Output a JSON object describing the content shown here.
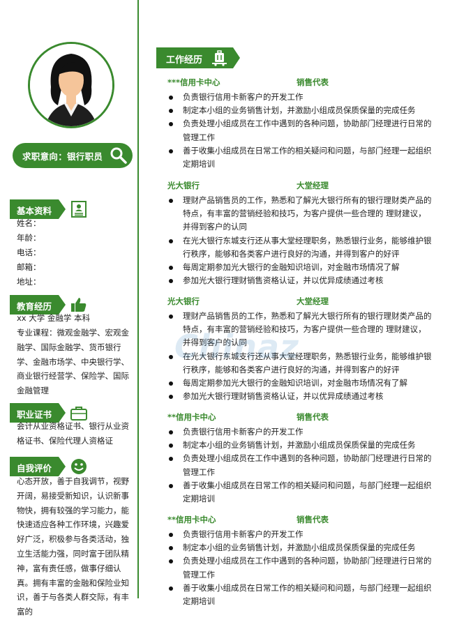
{
  "job_intent": "求职意向：银行职员",
  "sections": {
    "basic": "基本资料",
    "education": "教育经历",
    "certificates": "职业证书",
    "self_eval": "自我评价",
    "work": "工作经历"
  },
  "basic_info": [
    "姓名：",
    "年龄：",
    "电话：",
    "邮箱：",
    "地址："
  ],
  "education": {
    "line1": "xx 大学   金融学   本科",
    "courses": "专业课程：微观金融学、宏观金融学、国际金融学、货币银行学、金融市场学、中央银行学、商业银行经营学、保险学、国际金融管理"
  },
  "certificates": "会计从业资格证书、银行从业资格证书、保险代理人资格证",
  "self_evaluation": "心态开放，善于自我调节，视野开阔，易接受新知识，认识新事物快，拥有较强的学习能力，能快速适应各种工作环境，兴趣爱好广泛，积极参与各类活动，独立生活能力强，同时富于团队精神，富有责任感，做事仔细认真。拥有丰富的金融和保险业知识，善于与各类人群交际，有丰富的",
  "watermark": "Chinaz",
  "jobs": [
    {
      "org": "***信用卡中心",
      "position": "销售代表",
      "duties": [
        "负责银行信用卡新客户的开发工作",
        "制定本小组的业务销售计划，并激励小组成员保质保量的完成任务",
        "负责处理小组成员在工作中遇到的各种问题，协助部门经理进行日常的管理工作",
        "善于收集小组成员在日常工作的相关疑问和问题，与部门经理一起组织定期培训"
      ]
    },
    {
      "org": "光大银行",
      "position": "大堂经理",
      "duties": [
        "理财产品销售员的工作，熟悉和了解光大银行所有的银行理财类产品的特点，有丰富的营销经验和技巧，为客户提供一些合理的 理财建议，并得到客户的认同",
        "在光大银行东城支行还从事大堂经理职务，熟悉银行业务，能够维护银行秩序，能够和各类客户进行良好的沟通，并得到客户的好评",
        "每周定期参加光大银行的金融知识培训，对金融市场情况了解",
        "参加光大银行理财销售资格认证，并以优异成绩通过考核"
      ]
    },
    {
      "org": "光大银行",
      "position": "大堂经理",
      "duties": [
        "理财产品销售员的工作，熟悉和了解光大银行所有的银行理财类产品的特点，有丰富的营销经验和技巧，为客户提供一些合理的 理财建议，并得到客户的认同",
        "在光大银行东城支行还从事大堂经理职务，熟悉银行业务，能够维护银行秩序，能够和各类客户进行良好的沟通，并得到客户的好评",
        "每周定期参加光大银行的金融知识培训，对金融市场情况有了解",
        "参加光大银行理财销售资格认证，并以优异成绩通过考核"
      ]
    },
    {
      "org": "**信用卡中心",
      "position": "销售代表",
      "duties": [
        "负责银行信用卡新客户的开发工作",
        "制定本小组的业务销售计划，并激励小组成员保质保量的完成任务",
        "负责处理小组成员在工作中遇到的各种问题，协助部门经理进行日常的管理工作",
        "善于收集小组成员在日常工作的相关疑问和问题，与部门经理一起组织定期培训"
      ]
    },
    {
      "org": "**信用卡中心",
      "position": "销售代表",
      "duties": [
        "负责银行信用卡新客户的开发工作",
        "制定本小组的业务销售计划，并激励小组成员保质保量的完成任务",
        "负责处理小组成员在工作中遇到的各种问题，协助部门经理进行日常的管理工作",
        "善于收集小组成员在日常工作的相关疑问和问题，与部门经理一起组织定期培训"
      ]
    }
  ],
  "colors": {
    "accent": "#3a8a2e"
  }
}
